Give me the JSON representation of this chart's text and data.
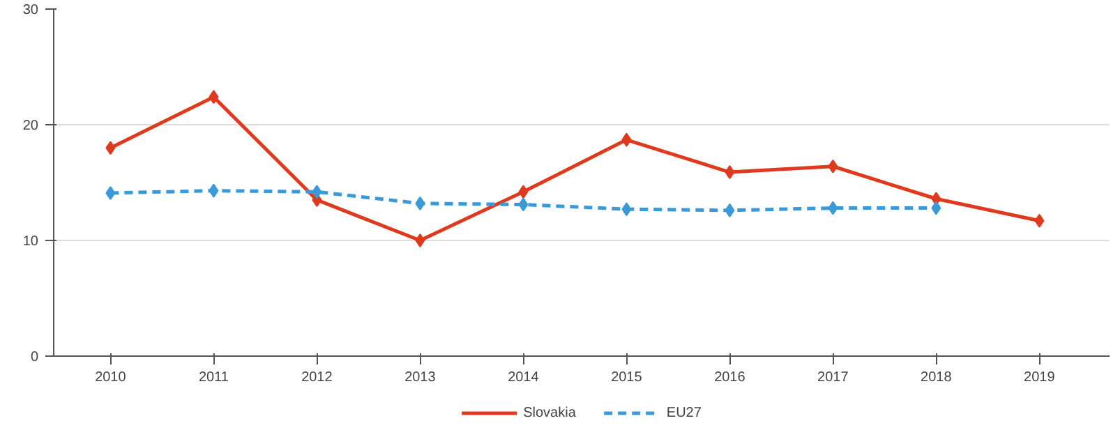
{
  "chart_data": {
    "type": "line",
    "categories": [
      "2010",
      "2011",
      "2012",
      "2013",
      "2014",
      "2015",
      "2016",
      "2017",
      "2018",
      "2019"
    ],
    "series": [
      {
        "name": "Slovakia",
        "color": "#e03a1e",
        "line_style": "solid",
        "values": [
          18.0,
          22.4,
          13.5,
          10.0,
          14.2,
          18.7,
          15.9,
          16.4,
          13.6,
          11.7
        ]
      },
      {
        "name": "EU27",
        "color": "#3a9ad9",
        "line_style": "dashed",
        "values": [
          14.1,
          14.3,
          14.2,
          13.2,
          13.1,
          12.7,
          12.6,
          12.8,
          12.8,
          null
        ]
      }
    ],
    "ylim": [
      0,
      30
    ],
    "yticks": [
      0,
      10,
      20,
      30
    ],
    "grid": "y",
    "legend": "bottom",
    "marker": "diamond"
  }
}
